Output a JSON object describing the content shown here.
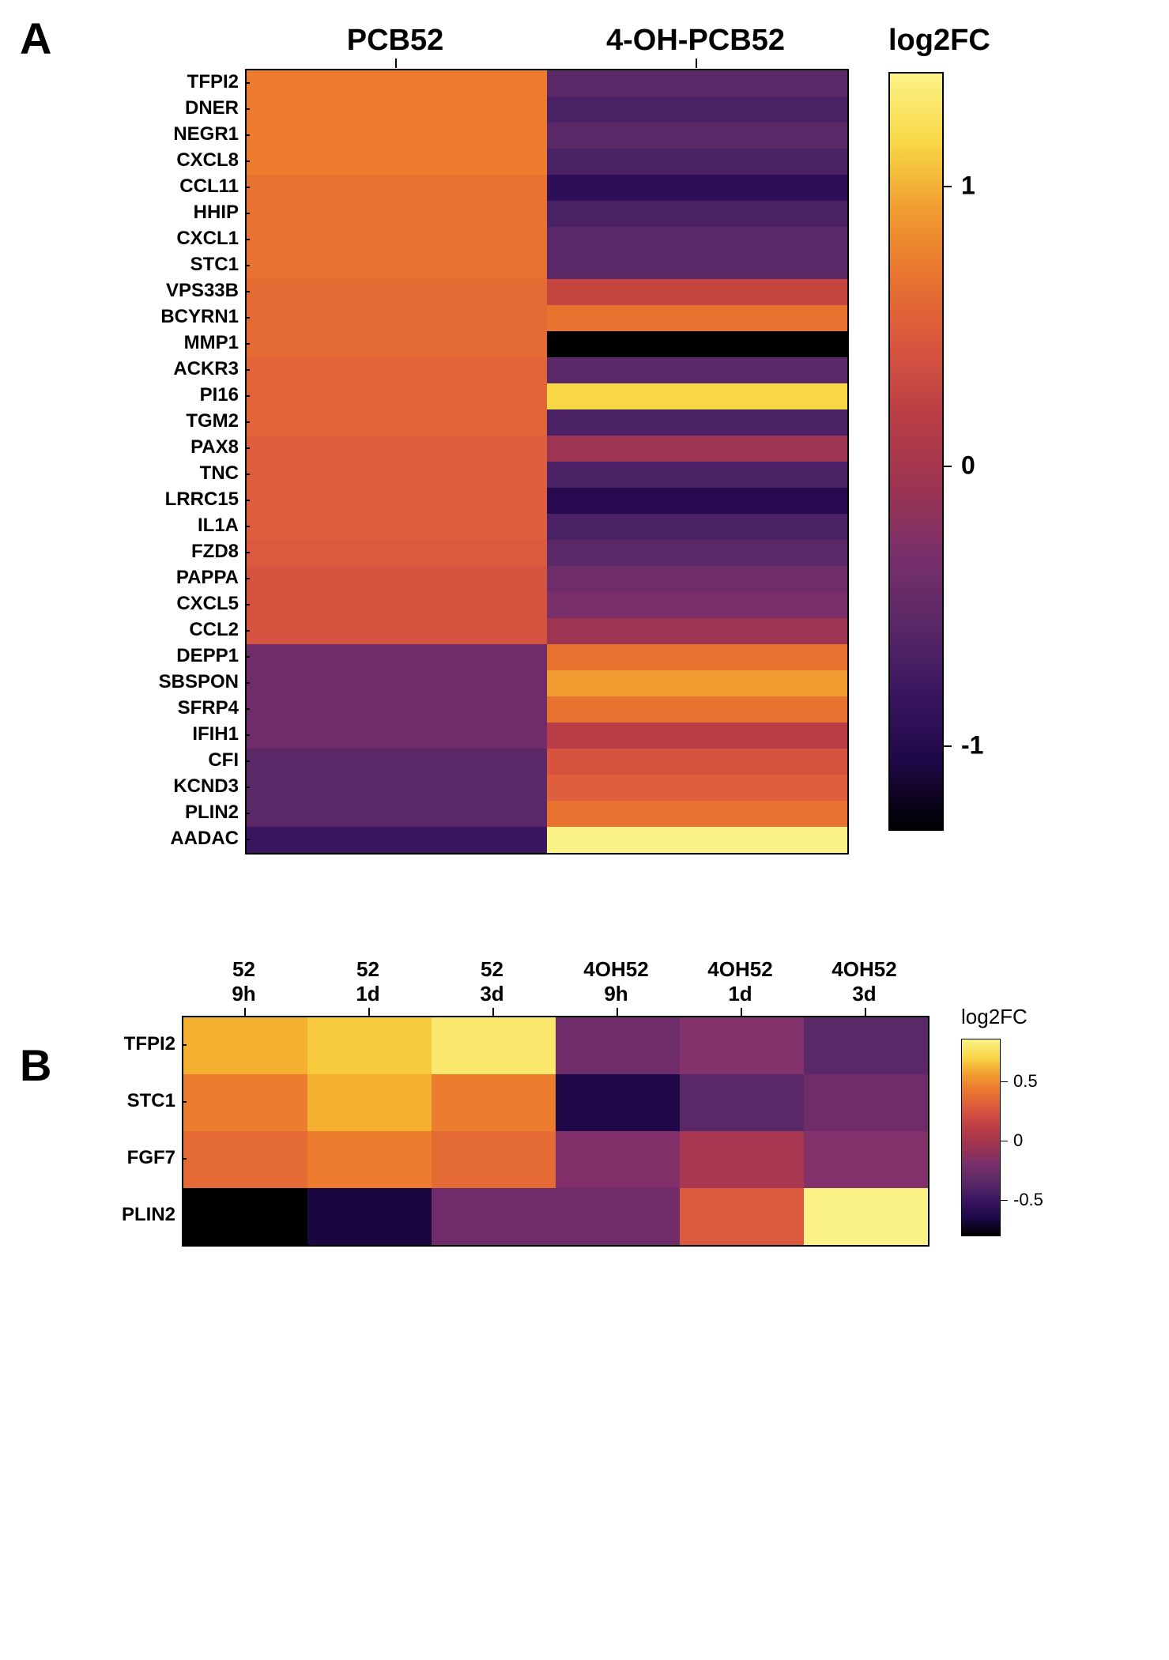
{
  "panelA": {
    "label": "A",
    "type": "heatmap",
    "column_headers": [
      "PCB52",
      "4-OH-PCB52"
    ],
    "row_labels": [
      "TFPI2",
      "DNER",
      "NEGR1",
      "CXCL8",
      "CCL11",
      "HHIP",
      "CXCL1",
      "STC1",
      "VPS33B",
      "BCYRN1",
      "MMP1",
      "ACKR3",
      "PI16",
      "TGM2",
      "PAX8",
      "TNC",
      "LRRC15",
      "IL1A",
      "FZD8",
      "PAPPA",
      "CXCL5",
      "CCL2",
      "DEPP1",
      "SBSPON",
      "SFRP4",
      "IFIH1",
      "CFI",
      "KCND3",
      "PLIN2",
      "AADAC"
    ],
    "colors": [
      [
        "#ee7c2f",
        "#5b2867"
      ],
      [
        "#ee7c2f",
        "#4b2165"
      ],
      [
        "#ee7c2f",
        "#5b2867"
      ],
      [
        "#ee7c2f",
        "#4b2165"
      ],
      [
        "#e87230",
        "#2e0e56"
      ],
      [
        "#e87230",
        "#4b2165"
      ],
      [
        "#e87230",
        "#5b2867"
      ],
      [
        "#e87230",
        "#5b2867"
      ],
      [
        "#e46b33",
        "#c6443e"
      ],
      [
        "#e46b33",
        "#e87230"
      ],
      [
        "#e46b33",
        "#000000"
      ],
      [
        "#e2653a",
        "#5b2867"
      ],
      [
        "#e2653a",
        "#f8d746"
      ],
      [
        "#e2653a",
        "#4b2165"
      ],
      [
        "#de5f3e",
        "#9d3451"
      ],
      [
        "#de5f3e",
        "#4b2165"
      ],
      [
        "#de5f3e",
        "#26094e"
      ],
      [
        "#de5f3e",
        "#4b2165"
      ],
      [
        "#da593f",
        "#5b2867"
      ],
      [
        "#d6543f",
        "#6e2d6a"
      ],
      [
        "#d6543f",
        "#782f6a"
      ],
      [
        "#d6543f",
        "#9d3451"
      ],
      [
        "#6e2d6a",
        "#e87230"
      ],
      [
        "#6e2d6a",
        "#f19b30"
      ],
      [
        "#6e2d6a",
        "#e87230"
      ],
      [
        "#6e2d6a",
        "#b93d46"
      ],
      [
        "#5b2867",
        "#d6543f"
      ],
      [
        "#5b2867",
        "#de5f3e"
      ],
      [
        "#5b2867",
        "#e87230"
      ],
      [
        "#3a1660",
        "#fbf287"
      ]
    ],
    "colorbar": {
      "title": "log2FC",
      "gradient": [
        "#fbf287",
        "#f8d746",
        "#f19b30",
        "#e87230",
        "#d6543f",
        "#b93d46",
        "#9d3451",
        "#782f6a",
        "#5b2867",
        "#3a1660",
        "#1e0848",
        "#000000"
      ],
      "min": -1.3,
      "max": 1.4,
      "ticks": [
        1,
        0,
        -1
      ],
      "tick_labels": [
        "1",
        "0",
        "-1"
      ]
    },
    "header_fontsize": 38,
    "row_fontsize": 24
  },
  "panelB": {
    "label": "B",
    "type": "heatmap",
    "column_headers": [
      {
        "l1": "52",
        "l2": "9h"
      },
      {
        "l1": "52",
        "l2": "1d"
      },
      {
        "l1": "52",
        "l2": "3d"
      },
      {
        "l1": "4OH52",
        "l2": "9h"
      },
      {
        "l1": "4OH52",
        "l2": "1d"
      },
      {
        "l1": "4OH52",
        "l2": "3d"
      }
    ],
    "row_labels": [
      "TFPI2",
      "STC1",
      "FGF7",
      "PLIN2"
    ],
    "colors": [
      [
        "#f4b030",
        "#f7c93c",
        "#fae76c",
        "#6e2d6a",
        "#82316a",
        "#5b2867"
      ],
      [
        "#ec7d2e",
        "#f4b030",
        "#ec7d2e",
        "#1e0848",
        "#5b2867",
        "#6e2d6a"
      ],
      [
        "#e46b33",
        "#ec7d2e",
        "#e46b33",
        "#802f68",
        "#a83851",
        "#82316a"
      ],
      [
        "#000000",
        "#1a0742",
        "#6e2d6a",
        "#6e2d6a",
        "#da593f",
        "#fbf287"
      ]
    ],
    "colorbar": {
      "title": "log2FC",
      "gradient": [
        "#fbf287",
        "#f8d746",
        "#f19b30",
        "#e87230",
        "#d6543f",
        "#b93d46",
        "#9d3451",
        "#782f6a",
        "#5b2867",
        "#3a1660",
        "#1e0848",
        "#000000"
      ],
      "min": -0.8,
      "max": 0.85,
      "ticks": [
        0.5,
        0,
        -0.5
      ],
      "tick_labels": [
        "0.5",
        "0",
        "-0.5"
      ]
    }
  }
}
